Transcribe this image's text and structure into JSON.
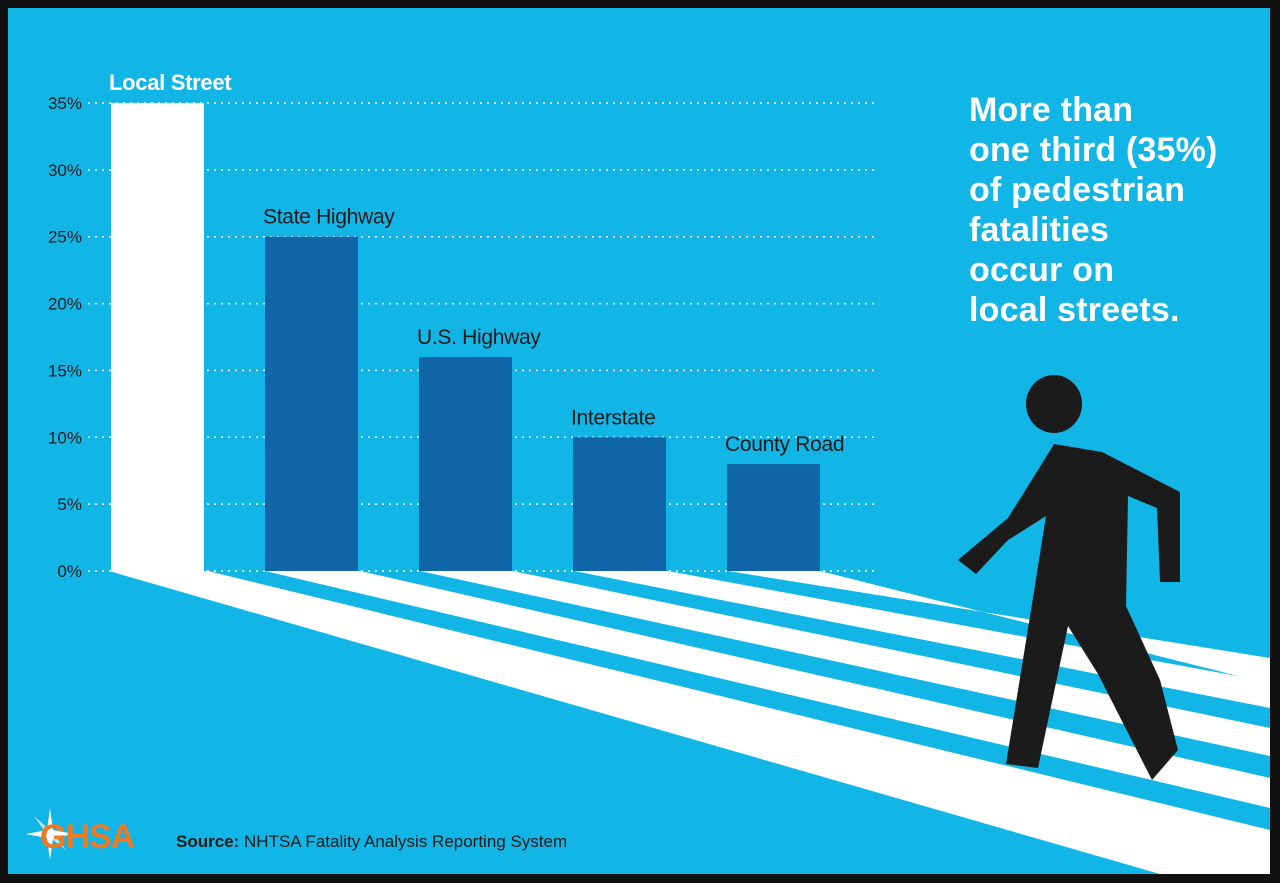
{
  "headline": {
    "lines": [
      "More than",
      "one third (35%)",
      "of pedestrian",
      "fatalities",
      "occur on",
      "local streets."
    ]
  },
  "source": {
    "prefix": "Source:",
    "text": "NHTSA Fatality Analysis Reporting System"
  },
  "logo": {
    "text": "GHSA"
  },
  "icons": [
    "pedestrian-icon",
    "logo-star-icon"
  ],
  "colors": {
    "background": "#12b6e6",
    "bar_highlight": "#ffffff",
    "bar": "#1166aa",
    "text": "#1b1b1b",
    "figure": "#1b1b1b",
    "logo": "#f07a22"
  },
  "chart_data": {
    "type": "bar",
    "categories": [
      "Local Street",
      "State Highway",
      "U.S. Highway",
      "Interstate",
      "County Road"
    ],
    "values": [
      35,
      25,
      16,
      10,
      8
    ],
    "highlight_index": 0,
    "yticks": [
      0,
      5,
      10,
      15,
      20,
      25,
      30,
      35
    ],
    "ytick_labels": [
      "0%",
      "5%",
      "10%",
      "15%",
      "20%",
      "25%",
      "30%",
      "35%"
    ],
    "ylim": [
      0,
      35
    ],
    "grid": "dotted horizontal",
    "title": "",
    "xlabel": "",
    "ylabel": ""
  }
}
